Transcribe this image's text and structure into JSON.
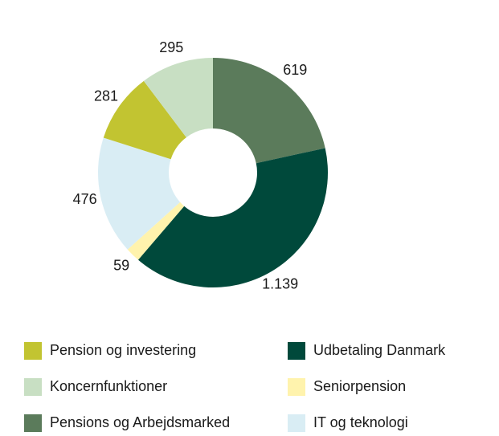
{
  "chart_data": {
    "type": "donut",
    "categories": [
      "Pensions og Arbejdsmarked",
      "Udbetaling Danmark",
      "Seniorpension",
      "IT og teknologi",
      "Pension og investering",
      "Koncernfunktioner"
    ],
    "values": [
      619,
      1139,
      59,
      476,
      281,
      295
    ],
    "value_labels": [
      "619",
      "1.139",
      "59",
      "476",
      "281",
      "295"
    ],
    "colors": [
      "#5b7b5b",
      "#00493b",
      "#fff3ad",
      "#d9edf4",
      "#c2c431",
      "#c8dfc3"
    ]
  }
}
